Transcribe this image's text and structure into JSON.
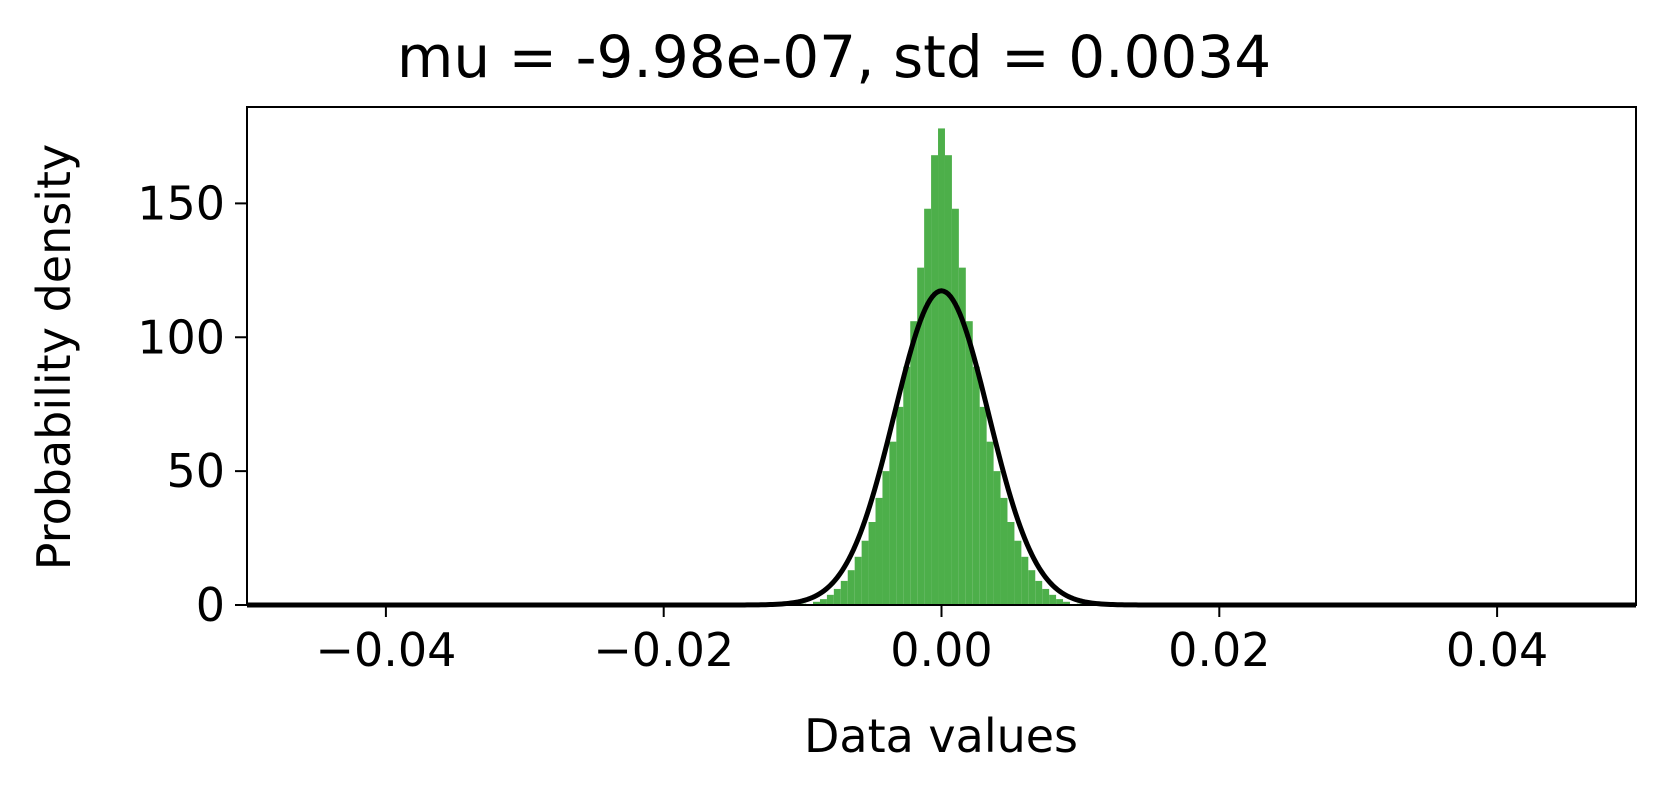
{
  "chart_data": {
    "type": "bar",
    "title": "mu = -9.98e-07, std = 0.0034",
    "xlabel": "Data values",
    "ylabel": "Probability density",
    "xlim": [
      -0.05,
      0.05
    ],
    "ylim": [
      0,
      186
    ],
    "x_ticks": [
      -0.04,
      -0.02,
      0.0,
      0.02,
      0.04
    ],
    "x_tick_labels": [
      "−0.04",
      "−0.02",
      "0.00",
      "0.02",
      "0.04"
    ],
    "y_ticks": [
      0,
      50,
      100,
      150
    ],
    "y_tick_labels": [
      "0",
      "50",
      "100",
      "150"
    ],
    "grid": false,
    "histogram": {
      "color": "#4daf4a",
      "bins": [
        [
          -0.011,
          0.2
        ],
        [
          -0.01,
          0.5
        ],
        [
          -0.009,
          1.2
        ],
        [
          -0.0085,
          2.2
        ],
        [
          -0.008,
          3.8
        ],
        [
          -0.0075,
          6
        ],
        [
          -0.007,
          9
        ],
        [
          -0.0065,
          13
        ],
        [
          -0.006,
          18
        ],
        [
          -0.0055,
          24
        ],
        [
          -0.005,
          31
        ],
        [
          -0.0045,
          40
        ],
        [
          -0.004,
          50
        ],
        [
          -0.0035,
          61
        ],
        [
          -0.003,
          74
        ],
        [
          -0.0025,
          89
        ],
        [
          -0.002,
          106
        ],
        [
          -0.0015,
          126
        ],
        [
          -0.001,
          148
        ],
        [
          -0.0005,
          168
        ],
        [
          0.0,
          178
        ],
        [
          0.0005,
          168
        ],
        [
          0.001,
          148
        ],
        [
          0.0015,
          126
        ],
        [
          0.002,
          106
        ],
        [
          0.0025,
          89
        ],
        [
          0.003,
          74
        ],
        [
          0.0035,
          61
        ],
        [
          0.004,
          50
        ],
        [
          0.0045,
          40
        ],
        [
          0.005,
          31
        ],
        [
          0.0055,
          24
        ],
        [
          0.006,
          18
        ],
        [
          0.0065,
          13
        ],
        [
          0.007,
          9
        ],
        [
          0.0075,
          6
        ],
        [
          0.008,
          3.8
        ],
        [
          0.0085,
          2.2
        ],
        [
          0.009,
          1.2
        ],
        [
          0.01,
          0.5
        ],
        [
          0.011,
          0.2
        ]
      ]
    },
    "fit_curve": {
      "type": "normal_pdf",
      "mu": -9.98e-07,
      "std": 0.0034,
      "color": "#000000"
    }
  }
}
